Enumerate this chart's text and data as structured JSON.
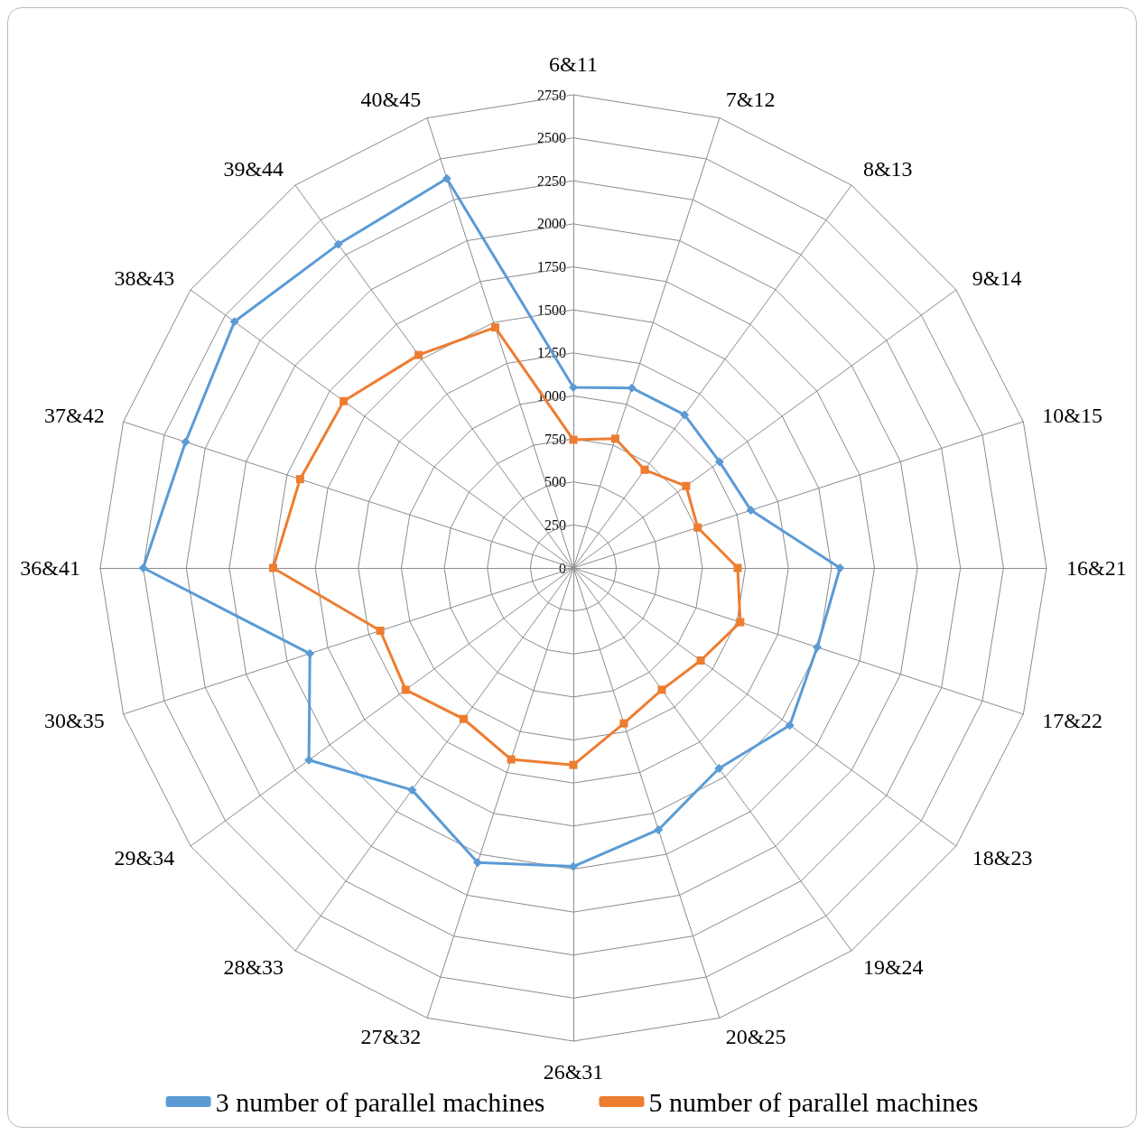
{
  "chart_data": {
    "type": "radar",
    "categories": [
      "6&11",
      "7&12",
      "8&13",
      "9&14",
      "10&15",
      "16&21",
      "17&22",
      "18&23",
      "19&24",
      "20&25",
      "26&31",
      "27&32",
      "28&33",
      "29&34",
      "30&35",
      "36&41",
      "37&42",
      "38&43",
      "39&44",
      "40&45"
    ],
    "series": [
      {
        "name": "3 number of parallel machines",
        "color": "#5b9bd5",
        "marker": "diamond",
        "values": [
          1050,
          1100,
          1100,
          1050,
          1085,
          1550,
          1490,
          1555,
          1440,
          1600,
          1735,
          1800,
          1595,
          1900,
          1610,
          2500,
          2370,
          2435,
          2325,
          2380
        ]
      },
      {
        "name": "5 number of parallel machines",
        "color": "#ed7d31",
        "marker": "square",
        "values": [
          745,
          790,
          705,
          810,
          760,
          955,
          1020,
          915,
          875,
          950,
          1145,
          1170,
          1085,
          1205,
          1180,
          1745,
          1670,
          1650,
          1530,
          1470
        ]
      }
    ],
    "ylim": [
      0,
      2750
    ],
    "yticks": [
      0,
      250,
      500,
      750,
      1000,
      1250,
      1500,
      1750,
      2000,
      2250,
      2500,
      2750
    ],
    "grid": true,
    "legend": "bottom"
  }
}
